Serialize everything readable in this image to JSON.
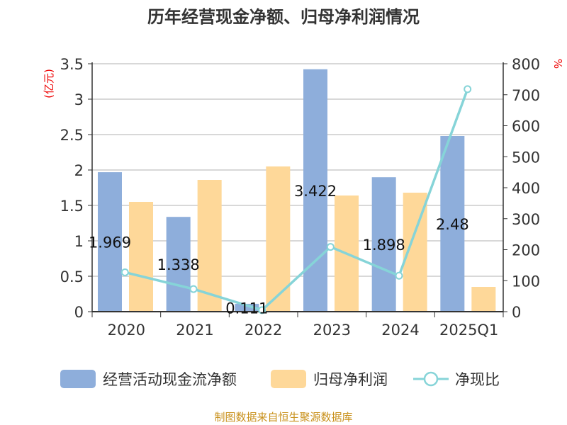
{
  "chart_data": {
    "type": "bar",
    "title": "历年经营现金净额、归母净利润情况",
    "categories": [
      "2020",
      "2021",
      "2022",
      "2023",
      "2024",
      "2025Q1"
    ],
    "left_unit": "(亿元)",
    "right_unit": "%",
    "ylim_left": [
      0,
      3.5
    ],
    "ylim_right": [
      0,
      800
    ],
    "left_ticks": [
      "0",
      "0.5",
      "1",
      "1.5",
      "2",
      "2.5",
      "3",
      "3.5"
    ],
    "right_ticks": [
      "0",
      "100",
      "200",
      "300",
      "400",
      "500",
      "600",
      "700",
      "800"
    ],
    "series": [
      {
        "name": "经营活动现金流净额",
        "type": "bar",
        "color": "#8eaedb",
        "values": [
          1.969,
          1.338,
          0.111,
          3.422,
          1.898,
          2.48
        ],
        "labels": [
          "1.969",
          "1.338",
          "0.111",
          "3.422",
          "1.898",
          "2.48"
        ]
      },
      {
        "name": "归母净利润",
        "type": "bar",
        "color": "#fed899",
        "values": [
          1.55,
          1.86,
          2.05,
          1.64,
          1.68,
          0.35
        ]
      },
      {
        "name": "净现比",
        "type": "line",
        "axis": "right",
        "color": "#86d4d8",
        "values": [
          127,
          73,
          5,
          209,
          116,
          718
        ]
      }
    ],
    "grid": true,
    "legend": "bottom",
    "source": "制图数据来自恒生聚源数据库"
  }
}
